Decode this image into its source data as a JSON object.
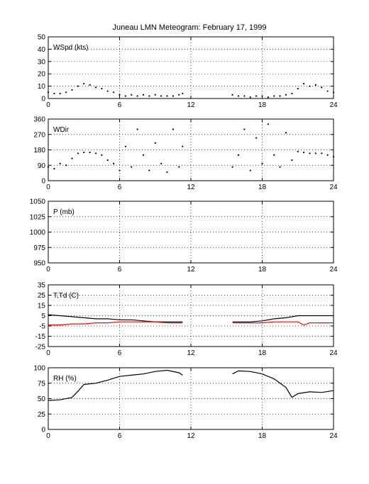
{
  "chart_data": [
    {
      "type": "scatter",
      "id": "wspd",
      "title": "Juneau LMN Meteogram:  February 17, 1999",
      "label": "WSpd (kts)",
      "xlim": [
        0,
        24
      ],
      "xticks": [
        "0",
        "6",
        "12",
        "18",
        "24"
      ],
      "ylim": [
        0,
        50
      ],
      "yticks": [
        "0",
        "10",
        "20",
        "30",
        "40",
        "50"
      ],
      "grid": true,
      "series": [
        {
          "color": "#000000",
          "segments": [
            {
              "x": [
                0,
                0.5,
                1,
                1.5,
                2,
                2.5,
                3,
                3.5,
                4,
                4.5,
                5,
                5.5,
                6,
                6.5,
                7,
                7.5,
                8,
                8.5,
                9,
                9.5,
                10,
                10.5,
                11,
                11.3
              ],
              "y": [
                5,
                4,
                4,
                5,
                7,
                10,
                12,
                11,
                9,
                8,
                6,
                5,
                3,
                2,
                3,
                2,
                3,
                2,
                3,
                2,
                2,
                2,
                3,
                4
              ]
            },
            {
              "x": [
                15.5,
                16,
                16.5,
                17,
                17.5,
                18,
                18.5,
                19,
                19.5,
                20,
                20.5,
                21,
                21.5,
                22,
                22.5,
                23,
                23.5,
                24
              ],
              "y": [
                3,
                2,
                2,
                1,
                2,
                2,
                1,
                2,
                2,
                3,
                4,
                8,
                12,
                10,
                11,
                9,
                6,
                5
              ]
            }
          ]
        }
      ]
    },
    {
      "type": "scatter",
      "id": "wdir",
      "label": "WDir",
      "xlim": [
        0,
        24
      ],
      "xticks": [
        "0",
        "6",
        "12",
        "18",
        "24"
      ],
      "ylim": [
        0,
        360
      ],
      "yticks": [
        "0",
        "90",
        "180",
        "270",
        "360"
      ],
      "grid": true,
      "series": [
        {
          "color": "#000000",
          "segments": [
            {
              "x": [
                0,
                0.5,
                1,
                1.5,
                2,
                2.5,
                3,
                3.5,
                4,
                4.5,
                5,
                5.5,
                6,
                6.5,
                7,
                7.5,
                8,
                8.5,
                9,
                9.5,
                10,
                10.5,
                11,
                11.3
              ],
              "y": [
                80,
                70,
                100,
                90,
                130,
                160,
                165,
                165,
                160,
                150,
                120,
                100,
                60,
                200,
                80,
                300,
                150,
                60,
                220,
                100,
                50,
                300,
                80,
                200
              ]
            },
            {
              "x": [
                15.5,
                16,
                16.5,
                17,
                17.5,
                18,
                18.5,
                19,
                19.5,
                20,
                20.5,
                21,
                21.5,
                22,
                22.5,
                23,
                23.5,
                24
              ],
              "y": [
                80,
                150,
                300,
                60,
                250,
                100,
                330,
                150,
                80,
                280,
                120,
                170,
                165,
                160,
                160,
                160,
                150,
                140
              ]
            }
          ]
        }
      ]
    },
    {
      "type": "line",
      "id": "pressure",
      "label": "P (mb)",
      "xlim": [
        0,
        24
      ],
      "xticks": [
        "0",
        "6",
        "12",
        "18",
        "24"
      ],
      "ylim": [
        950,
        1050
      ],
      "yticks": [
        "950",
        "975",
        "1000",
        "1025",
        "1050"
      ],
      "grid": true,
      "series": []
    },
    {
      "type": "line",
      "id": "temp",
      "label": "T,Td (C)",
      "xlim": [
        0,
        24
      ],
      "xticks": [
        "0",
        "6",
        "12",
        "18",
        "24"
      ],
      "ylim": [
        -25,
        35
      ],
      "yticks": [
        "-25",
        "-15",
        "-5",
        "5",
        "15",
        "25",
        "35"
      ],
      "grid": true,
      "series": [
        {
          "color": "#000000",
          "segments": [
            {
              "x": [
                0,
                1,
                2,
                3,
                4,
                5,
                6,
                7,
                8,
                9,
                10,
                11,
                11.3
              ],
              "y": [
                6,
                5,
                4,
                3,
                2,
                2,
                1,
                1,
                0,
                -1,
                -1,
                -1,
                -1
              ]
            },
            {
              "x": [
                15.5,
                16,
                17,
                18,
                19,
                20,
                21,
                22,
                23,
                24
              ],
              "y": [
                -1,
                -1,
                -1,
                0,
                2,
                3,
                5,
                5,
                5,
                5
              ]
            }
          ]
        },
        {
          "color": "#ff0000",
          "segments": [
            {
              "x": [
                0,
                1,
                2,
                3,
                4,
                5,
                6,
                7,
                8,
                9,
                10,
                11,
                11.3
              ],
              "y": [
                -4,
                -4,
                -3,
                -3,
                -2,
                -2,
                -1,
                -1,
                -1,
                -1,
                -2,
                -2,
                -2
              ]
            },
            {
              "x": [
                15.5,
                16,
                17,
                18,
                19,
                20,
                21,
                21.5,
                22,
                23,
                24
              ],
              "y": [
                -2,
                -2,
                -2,
                -2,
                -1,
                -1,
                -1,
                -4,
                -2,
                -2,
                -2
              ]
            }
          ]
        }
      ]
    },
    {
      "type": "line",
      "id": "rh",
      "label": "RH (%)",
      "xlim": [
        0,
        24
      ],
      "xticks": [
        "0",
        "6",
        "12",
        "18",
        "24"
      ],
      "ylim": [
        0,
        100
      ],
      "yticks": [
        "0",
        "25",
        "50",
        "75",
        "100"
      ],
      "grid": true,
      "series": [
        {
          "color": "#000000",
          "segments": [
            {
              "x": [
                0,
                1,
                2,
                2.5,
                3,
                4,
                5,
                6,
                7,
                8,
                9,
                10,
                11,
                11.3
              ],
              "y": [
                47,
                48,
                52,
                62,
                73,
                75,
                80,
                86,
                88,
                90,
                94,
                96,
                92,
                88
              ]
            },
            {
              "x": [
                15.5,
                16,
                17,
                18,
                19,
                20,
                20.5,
                21,
                22,
                23,
                24
              ],
              "y": [
                90,
                95,
                94,
                90,
                82,
                68,
                52,
                58,
                61,
                60,
                63
              ]
            }
          ]
        }
      ]
    }
  ]
}
